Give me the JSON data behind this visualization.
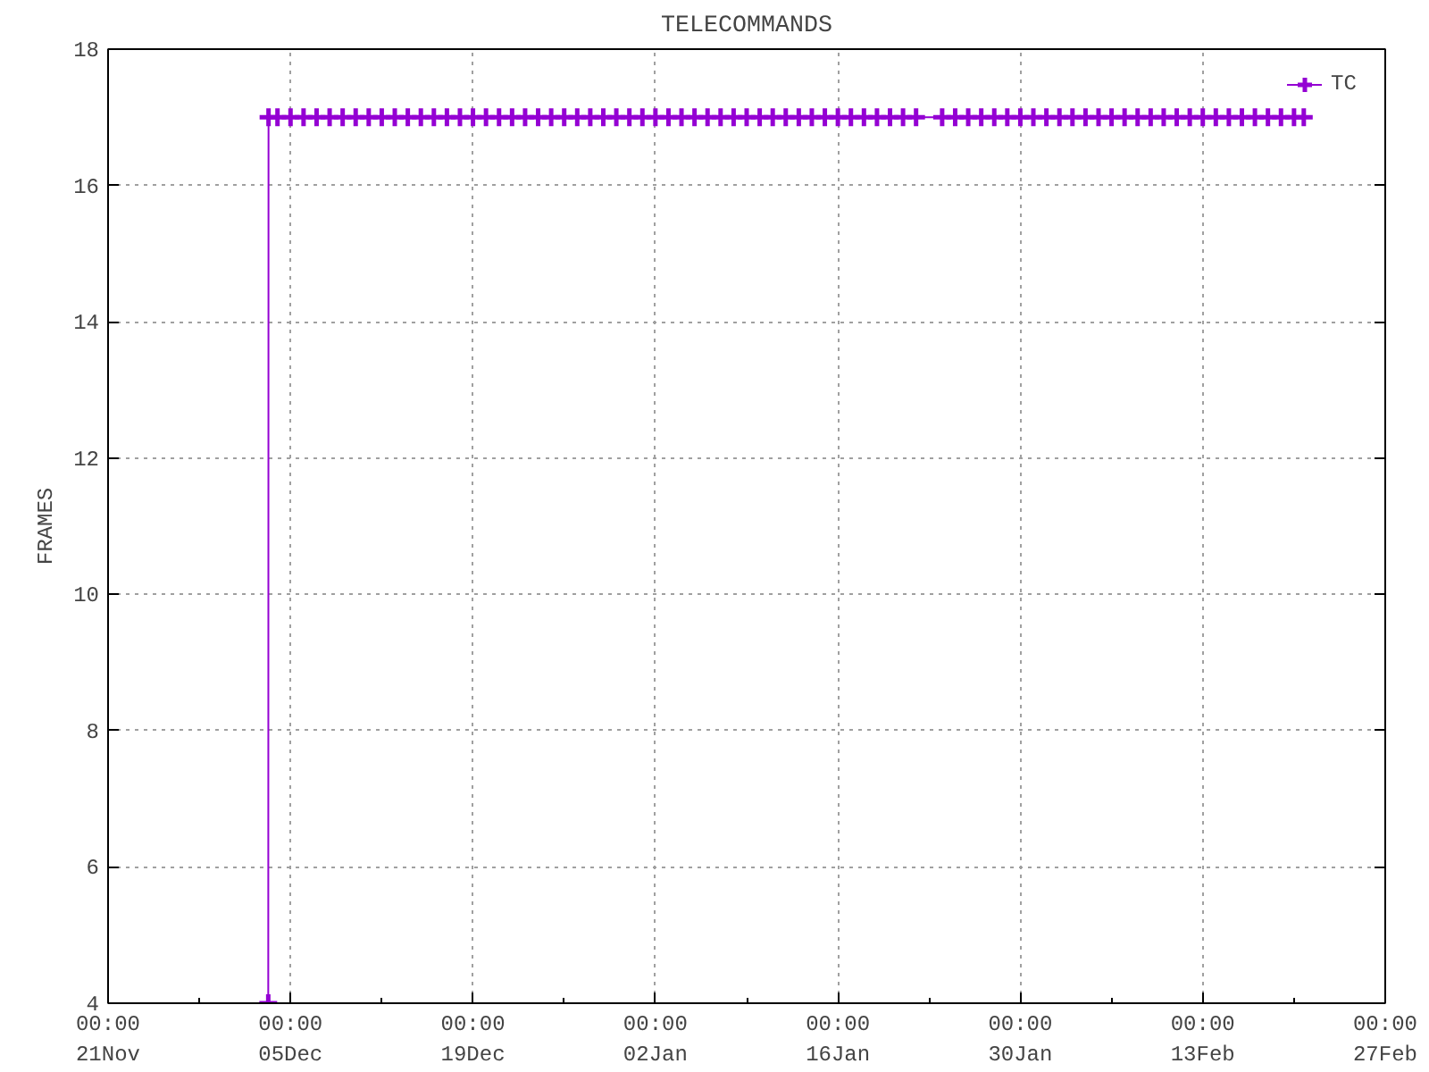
{
  "chart_data": {
    "type": "line",
    "title": "TELECOMMANDS",
    "ylabel": "FRAMES",
    "x": [
      "2000-12-03T07:00",
      "2000-12-03T07:30",
      "2000-12-04",
      "2000-12-05",
      "2000-12-06",
      "2000-12-07",
      "2000-12-08",
      "2000-12-09",
      "2000-12-10",
      "2000-12-11",
      "2000-12-12",
      "2000-12-13",
      "2000-12-14",
      "2000-12-15",
      "2000-12-16",
      "2000-12-17",
      "2000-12-18",
      "2000-12-19",
      "2000-12-20",
      "2000-12-21",
      "2000-12-22",
      "2000-12-23",
      "2000-12-24",
      "2000-12-25",
      "2000-12-26",
      "2000-12-27",
      "2000-12-28",
      "2000-12-29",
      "2000-12-30",
      "2000-12-31",
      "2001-01-01",
      "2001-01-02",
      "2001-01-03",
      "2001-01-04",
      "2001-01-05",
      "2001-01-06",
      "2001-01-07",
      "2001-01-08",
      "2001-01-09",
      "2001-01-10",
      "2001-01-11",
      "2001-01-12",
      "2001-01-13",
      "2001-01-14",
      "2001-01-15",
      "2001-01-16",
      "2001-01-17",
      "2001-01-18",
      "2001-01-19",
      "2001-01-20",
      "2001-01-21",
      "2001-01-22",
      "2001-01-24",
      "2001-01-25",
      "2001-01-26",
      "2001-01-27",
      "2001-01-28",
      "2001-01-29",
      "2001-01-30",
      "2001-01-31",
      "2001-02-01",
      "2001-02-02",
      "2001-02-03",
      "2001-02-04",
      "2001-02-05",
      "2001-02-06",
      "2001-02-07",
      "2001-02-08",
      "2001-02-09",
      "2001-02-10",
      "2001-02-11",
      "2001-02-12",
      "2001-02-13",
      "2001-02-14",
      "2001-02-15",
      "2001-02-16",
      "2001-02-17",
      "2001-02-18",
      "2001-02-19",
      "2001-02-20",
      "2001-02-20T18:00"
    ],
    "series": [
      {
        "name": "TC",
        "color": "#9400d3",
        "values": [
          4,
          17,
          17,
          17,
          17,
          17,
          17,
          17,
          17,
          17,
          17,
          17,
          17,
          17,
          17,
          17,
          17,
          17,
          17,
          17,
          17,
          17,
          17,
          17,
          17,
          17,
          17,
          17,
          17,
          17,
          17,
          17,
          17,
          17,
          17,
          17,
          17,
          17,
          17,
          17,
          17,
          17,
          17,
          17,
          17,
          17,
          17,
          17,
          17,
          17,
          17,
          17,
          17,
          17,
          17,
          17,
          17,
          17,
          17,
          17,
          17,
          17,
          17,
          17,
          17,
          17,
          17,
          17,
          17,
          17,
          17,
          17,
          17,
          17,
          17,
          17,
          17,
          17,
          17,
          17,
          17
        ]
      }
    ],
    "xlim": [
      "2000-11-21",
      "2001-02-27"
    ],
    "xticks": [
      {
        "value": "2000-11-21",
        "label": "00:00\n21Nov"
      },
      {
        "value": "2000-12-05",
        "label": "00:00\n05Dec"
      },
      {
        "value": "2000-12-19",
        "label": "00:00\n19Dec"
      },
      {
        "value": "2001-01-02",
        "label": "00:00\n02Jan"
      },
      {
        "value": "2001-01-16",
        "label": "00:00\n16Jan"
      },
      {
        "value": "2001-01-30",
        "label": "00:00\n30Jan"
      },
      {
        "value": "2001-02-13",
        "label": "00:00\n13Feb"
      },
      {
        "value": "2001-02-27",
        "label": "00:00\n27Feb"
      }
    ],
    "ylim": [
      4,
      18
    ],
    "yticks": [
      4,
      6,
      8,
      10,
      12,
      14,
      16,
      18
    ],
    "grid": true,
    "legend": "top right",
    "marker": "cross",
    "line_style": "solid"
  }
}
